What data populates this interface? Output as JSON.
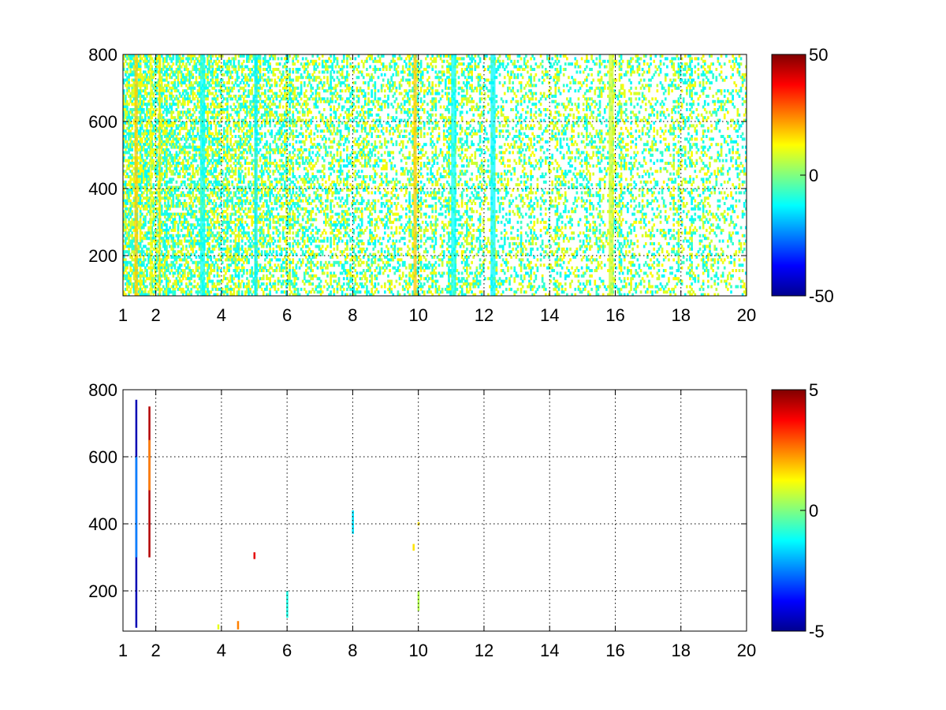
{
  "chart_data": [
    {
      "type": "heatmap",
      "colormap": "jet",
      "xlim": [
        1,
        20
      ],
      "ylim": [
        80,
        800
      ],
      "x_ticks": [
        "1",
        "2",
        "4",
        "6",
        "8",
        "10",
        "12",
        "14",
        "16",
        "18",
        "20"
      ],
      "y_ticks": [
        "200",
        "400",
        "600",
        "800"
      ],
      "grid": "on",
      "colorbar": {
        "position": "right",
        "range": [
          -50,
          50
        ],
        "ticks": [
          "-50",
          "0",
          "50"
        ]
      },
      "bands": [
        {
          "x": [
            1.35,
            1.45
          ],
          "value": 18
        },
        {
          "x": [
            1.82,
            1.88
          ],
          "value": 12
        },
        {
          "x": [
            2.08,
            2.14
          ],
          "value": 15
        },
        {
          "x": [
            3.35,
            3.5
          ],
          "value": -12
        },
        {
          "x": [
            5.0,
            5.1
          ],
          "value": -14
        },
        {
          "x": [
            9.85,
            9.95
          ],
          "value": 18
        },
        {
          "x": [
            11.0,
            11.15
          ],
          "value": -12
        },
        {
          "x": [
            12.2,
            12.35
          ],
          "value": -13
        },
        {
          "x": [
            15.8,
            15.95
          ],
          "value": 8
        }
      ],
      "noise": {
        "density": "decreasing with x",
        "value_range": [
          -15,
          15
        ]
      }
    },
    {
      "type": "heatmap",
      "colormap": "jet",
      "xlim": [
        1,
        20
      ],
      "ylim": [
        80,
        800
      ],
      "x_ticks": [
        "1",
        "2",
        "4",
        "6",
        "8",
        "10",
        "12",
        "14",
        "16",
        "18",
        "20"
      ],
      "y_ticks": [
        "200",
        "400",
        "600",
        "800"
      ],
      "grid": "on",
      "colorbar": {
        "position": "right",
        "range": [
          -5,
          5
        ],
        "ticks": [
          "-5",
          "0",
          "5"
        ]
      },
      "segments": [
        {
          "x": 1.4,
          "y": [
            90,
            770
          ],
          "value": -4.5
        },
        {
          "x": 1.4,
          "y": [
            300,
            600
          ],
          "value": -2.5
        },
        {
          "x": 1.8,
          "y": [
            300,
            750
          ],
          "value": 4.5
        },
        {
          "x": 1.8,
          "y": [
            500,
            650
          ],
          "value": 2.5
        },
        {
          "x": 3.9,
          "y": [
            85,
            100
          ],
          "value": 1
        },
        {
          "x": 4.5,
          "y": [
            85,
            110
          ],
          "value": 2.5
        },
        {
          "x": 5.0,
          "y": [
            295,
            315
          ],
          "value": 4
        },
        {
          "x": 6.0,
          "y": [
            120,
            200
          ],
          "value": -1
        },
        {
          "x": 8.0,
          "y": [
            370,
            440
          ],
          "value": -1.5
        },
        {
          "x": 9.85,
          "y": [
            320,
            340
          ],
          "value": 1.5
        },
        {
          "x": 10.0,
          "y": [
            395,
            405
          ],
          "value": 1.5
        },
        {
          "x": 10.0,
          "y": [
            140,
            200
          ],
          "value": 0.5
        }
      ]
    }
  ]
}
